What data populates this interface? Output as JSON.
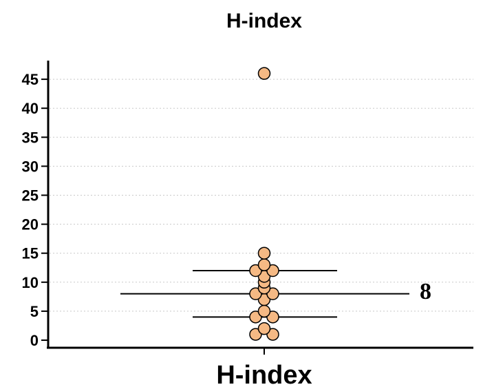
{
  "chart_data": {
    "type": "scatter",
    "title": "H-index",
    "xlabel": "H-index",
    "ylabel": "",
    "ylim": [
      0,
      47
    ],
    "yticks": [
      0,
      5,
      10,
      15,
      20,
      25,
      30,
      35,
      40,
      45
    ],
    "grid": true,
    "point_color": "#f5b984",
    "point_edge_color": "#000000",
    "points": [
      46,
      15,
      13,
      12,
      12,
      11,
      10,
      9,
      8,
      8,
      7,
      5,
      4,
      4,
      2,
      1,
      1
    ],
    "median": 8,
    "median_label": "8",
    "quartiles": [
      4,
      12
    ]
  }
}
